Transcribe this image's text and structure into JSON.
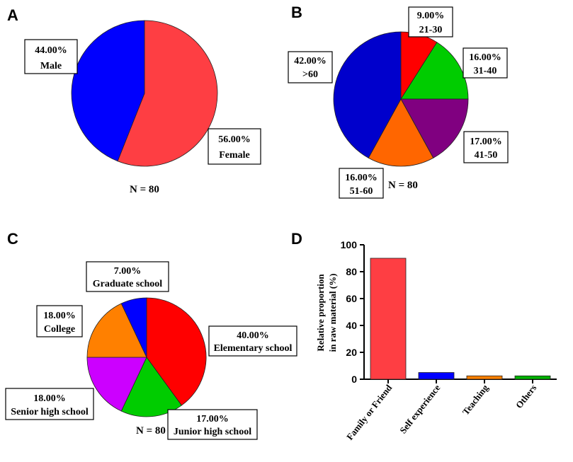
{
  "chart_data": [
    {
      "panel": "A",
      "type": "pie",
      "n_label": "N = 80",
      "slices": [
        {
          "name": "Female",
          "value": 56.0,
          "pct_label": "56.00%",
          "color": "#fe3e43"
        },
        {
          "name": "Male",
          "value": 44.0,
          "pct_label": "44.00%",
          "color": "#0000fe"
        }
      ]
    },
    {
      "panel": "B",
      "type": "pie",
      "n_label": "N = 80",
      "slices": [
        {
          "name": "21-30",
          "value": 9.0,
          "pct_label": "9.00%",
          "color": "#ff0000"
        },
        {
          "name": "31-40",
          "value": 16.0,
          "pct_label": "16.00%",
          "color": "#00cc00"
        },
        {
          "name": "41-50",
          "value": 17.0,
          "pct_label": "17.00%",
          "color": "#800080"
        },
        {
          "name": "51-60",
          "value": 16.0,
          "pct_label": "16.00%",
          "color": "#ff6600"
        },
        {
          "name": ">60",
          "value": 42.0,
          "pct_label": "42.00%",
          "color": "#0000cc"
        }
      ]
    },
    {
      "panel": "C",
      "type": "pie",
      "n_label": "N = 80",
      "slices": [
        {
          "name": "Elementary school",
          "value": 40.0,
          "pct_label": "40.00%",
          "color": "#ff0000"
        },
        {
          "name": "Junior high school",
          "value": 17.0,
          "pct_label": "17.00%",
          "color": "#00cc00"
        },
        {
          "name": "Senior high school",
          "value": 18.0,
          "pct_label": "18.00%",
          "color": "#cc00ff"
        },
        {
          "name": "College",
          "value": 18.0,
          "pct_label": "18.00%",
          "color": "#ff8000"
        },
        {
          "name": "Graduate school",
          "value": 7.0,
          "pct_label": "7.00%",
          "color": "#0000ff"
        }
      ]
    },
    {
      "panel": "D",
      "type": "bar",
      "ylabel_lines": [
        "Relative proportion",
        "in raw material (%)"
      ],
      "ylim": [
        0,
        100
      ],
      "yticks": [
        0,
        20,
        40,
        60,
        80,
        100
      ],
      "categories": [
        "Family or Friend",
        "Self experience",
        "Teaching",
        "Others"
      ],
      "values": [
        90,
        5,
        2.5,
        2.5
      ],
      "colors": [
        "#fe3e43",
        "#0000ff",
        "#ff8000",
        "#00b300"
      ]
    }
  ]
}
